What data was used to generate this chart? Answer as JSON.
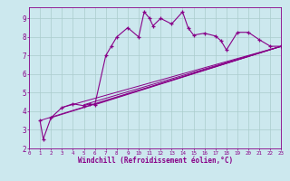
{
  "xlabel": "Windchill (Refroidissement éolien,°C)",
  "bg_color": "#cce8ee",
  "line_color": "#880088",
  "grid_color": "#aacccc",
  "xlim": [
    0,
    23
  ],
  "ylim": [
    2,
    9.6
  ],
  "yticks": [
    2,
    3,
    4,
    5,
    6,
    7,
    8,
    9
  ],
  "xticks": [
    0,
    1,
    2,
    3,
    4,
    5,
    6,
    7,
    8,
    9,
    10,
    11,
    12,
    13,
    14,
    15,
    16,
    17,
    18,
    19,
    20,
    21,
    22,
    23
  ],
  "series": [
    [
      1,
      3.5
    ],
    [
      1.3,
      2.5
    ],
    [
      2,
      3.65
    ],
    [
      3,
      4.2
    ],
    [
      4,
      4.4
    ],
    [
      5,
      4.3
    ],
    [
      5.5,
      4.4
    ],
    [
      6,
      4.35
    ],
    [
      7,
      7.0
    ],
    [
      7.5,
      7.5
    ],
    [
      8,
      8.0
    ],
    [
      9,
      8.5
    ],
    [
      10,
      8.0
    ],
    [
      10.5,
      9.35
    ],
    [
      11,
      9.0
    ],
    [
      11.3,
      8.6
    ],
    [
      12,
      9.0
    ],
    [
      13,
      8.7
    ],
    [
      14,
      9.35
    ],
    [
      14.5,
      8.5
    ],
    [
      15,
      8.1
    ],
    [
      16,
      8.2
    ],
    [
      17,
      8.05
    ],
    [
      17.5,
      7.8
    ],
    [
      18,
      7.3
    ],
    [
      19,
      8.25
    ],
    [
      20,
      8.25
    ],
    [
      21,
      7.85
    ],
    [
      22,
      7.5
    ],
    [
      23,
      7.5
    ]
  ],
  "straight_lines": [
    [
      [
        1,
        23
      ],
      [
        3.5,
        7.5
      ]
    ],
    [
      [
        2,
        23
      ],
      [
        3.65,
        7.5
      ]
    ],
    [
      [
        3,
        23
      ],
      [
        4.2,
        7.5
      ]
    ],
    [
      [
        5,
        23
      ],
      [
        4.35,
        7.5
      ]
    ],
    [
      [
        6,
        23
      ],
      [
        4.35,
        7.5
      ]
    ]
  ]
}
